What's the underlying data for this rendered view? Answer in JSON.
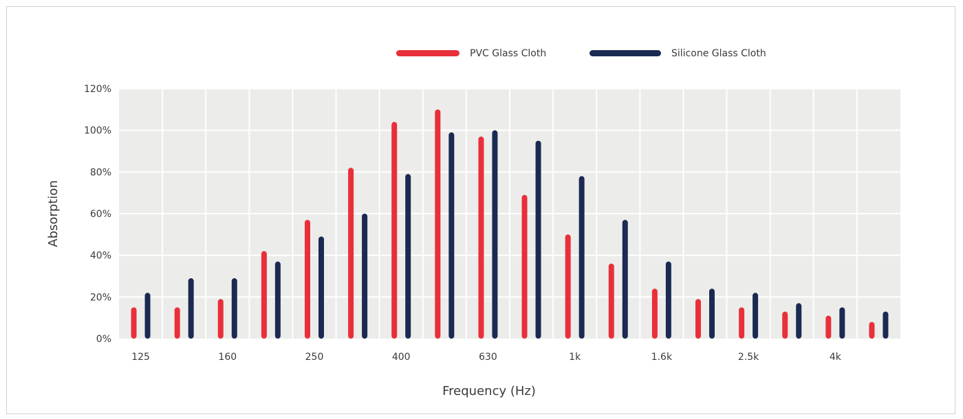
{
  "chart_data": {
    "type": "bar",
    "title": "",
    "xlabel": "Frequency (Hz)",
    "ylabel": "Absorption",
    "ylim": [
      0,
      120
    ],
    "yticks": [
      "0%",
      "20%",
      "40%",
      "60%",
      "80%",
      "100%",
      "120%"
    ],
    "categories": [
      "125",
      "",
      "160",
      "",
      "250",
      "",
      "400",
      "",
      "630",
      "",
      "1k",
      "",
      "1.6k",
      "",
      "2.5k",
      "",
      "4k",
      ""
    ],
    "series": [
      {
        "name": "PVC Glass Cloth",
        "color": "#e8303a",
        "values": [
          15,
          15,
          19,
          42,
          57,
          82,
          104,
          110,
          97,
          69,
          50,
          36,
          24,
          19,
          15,
          13,
          11,
          8
        ]
      },
      {
        "name": "Silicone Glass Cloth",
        "color": "#1b2a52",
        "values": [
          22,
          29,
          29,
          37,
          49,
          60,
          79,
          99,
          100,
          95,
          78,
          57,
          37,
          24,
          22,
          17,
          15,
          13
        ]
      }
    ],
    "grid": true,
    "legend": "top-center",
    "plot_background": "#ececea"
  }
}
